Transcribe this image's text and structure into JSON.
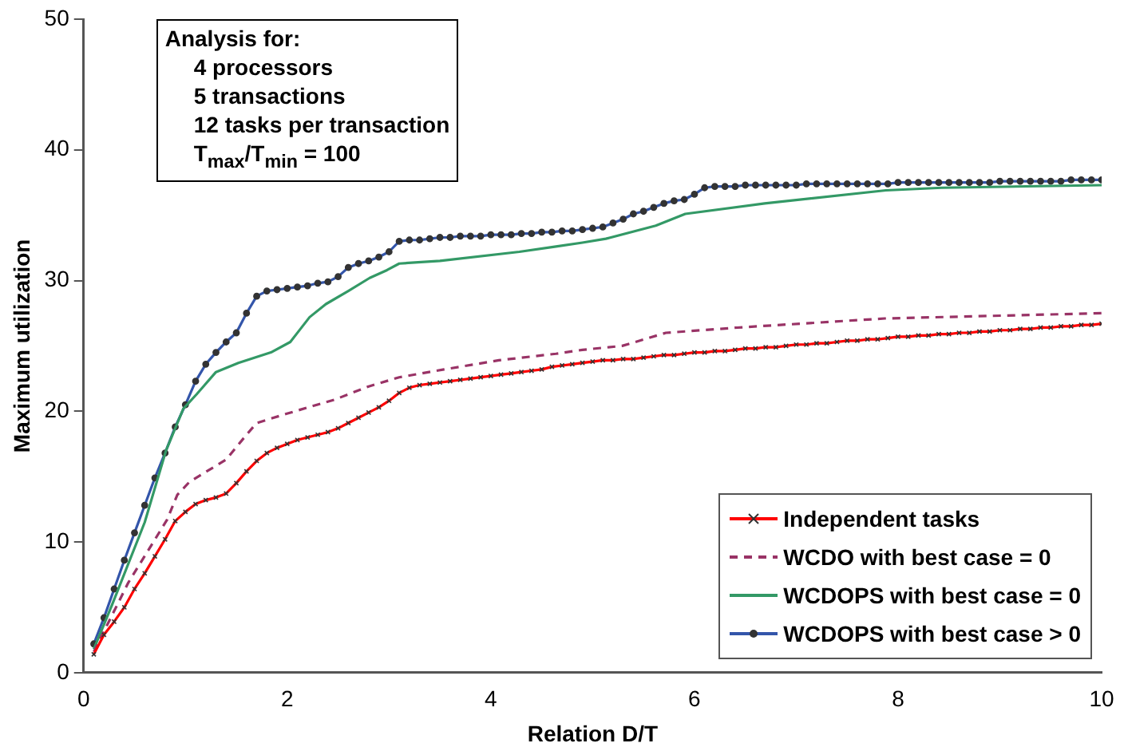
{
  "chart_data": {
    "type": "line",
    "xlabel": "Relation D/T",
    "ylabel": "Maximum utilization",
    "xlim": [
      0,
      10
    ],
    "xticks": [
      0,
      2,
      4,
      6,
      8,
      10
    ],
    "ylim": [
      0,
      50
    ],
    "yticks": [
      0,
      10,
      20,
      30,
      40,
      50
    ],
    "grid": false,
    "legend": "bottom right",
    "annotations": [
      "Analysis for:",
      "4 processors",
      "5 transactions",
      "12 tasks per transaction",
      "T$_{max}$/T$_{min}$ = 100"
    ],
    "series": [
      {
        "name": "Independent tasks",
        "color": "#ff0000",
        "marker": "cross",
        "line_style": "solid",
        "x": [
          0.1,
          0.2,
          0.3,
          0.4,
          0.5,
          0.6,
          0.7,
          0.8,
          0.9,
          1.0,
          1.1,
          1.2,
          1.3,
          1.4,
          1.5,
          1.6,
          1.7,
          1.8,
          1.9,
          2.0,
          2.1,
          2.2,
          2.3,
          2.4,
          2.5,
          2.6,
          2.7,
          2.8,
          2.9,
          3.0,
          3.1,
          3.2,
          3.3,
          3.4,
          3.5,
          3.6,
          3.7,
          3.8,
          3.9,
          4.0,
          4.1,
          4.2,
          4.3,
          4.4,
          4.5,
          4.6,
          4.7,
          4.8,
          4.9,
          5.0,
          5.1,
          5.2,
          5.3,
          5.4,
          5.5,
          5.6,
          5.7,
          5.8,
          5.9,
          6.0,
          6.1,
          6.2,
          6.3,
          6.4,
          6.5,
          6.6,
          6.7,
          6.8,
          6.9,
          7.0,
          7.1,
          7.2,
          7.3,
          7.4,
          7.5,
          7.6,
          7.7,
          7.8,
          7.9,
          8.0,
          8.1,
          8.2,
          8.3,
          8.4,
          8.5,
          8.6,
          8.7,
          8.8,
          8.9,
          9.0,
          9.1,
          9.2,
          9.3,
          9.4,
          9.5,
          9.6,
          9.7,
          9.8,
          9.9,
          10.0
        ],
        "values": [
          1.4,
          2.9,
          3.9,
          5.0,
          6.4,
          7.6,
          8.9,
          10.2,
          11.6,
          12.3,
          12.9,
          13.2,
          13.4,
          13.7,
          14.5,
          15.4,
          16.2,
          16.8,
          17.2,
          17.5,
          17.8,
          18.0,
          18.2,
          18.4,
          18.7,
          19.1,
          19.5,
          19.9,
          20.3,
          20.8,
          21.4,
          21.8,
          22.0,
          22.1,
          22.2,
          22.3,
          22.4,
          22.5,
          22.6,
          22.7,
          22.8,
          22.9,
          23.0,
          23.1,
          23.2,
          23.4,
          23.5,
          23.6,
          23.7,
          23.8,
          23.9,
          23.9,
          24.0,
          24.0,
          24.1,
          24.2,
          24.3,
          24.3,
          24.4,
          24.5,
          24.5,
          24.6,
          24.6,
          24.7,
          24.8,
          24.8,
          24.9,
          24.9,
          25.0,
          25.1,
          25.1,
          25.2,
          25.2,
          25.3,
          25.4,
          25.4,
          25.5,
          25.5,
          25.6,
          25.7,
          25.7,
          25.8,
          25.8,
          25.9,
          25.9,
          26.0,
          26.0,
          26.1,
          26.1,
          26.2,
          26.2,
          26.3,
          26.3,
          26.4,
          26.4,
          26.5,
          26.5,
          26.6,
          26.6,
          26.7
        ]
      },
      {
        "name": "WCDO with best case = 0",
        "color": "#993366",
        "marker": "none",
        "line_style": "dashed",
        "x": [
          0.1,
          0.44,
          0.82,
          0.92,
          1.04,
          1.4,
          1.6,
          1.7,
          1.99,
          2.47,
          2.8,
          3.1,
          3.54,
          4.08,
          4.64,
          4.9,
          5.29,
          5.72,
          6.42,
          7.87,
          10
        ],
        "values": [
          1.6,
          6.9,
          11.7,
          13.6,
          14.6,
          16.3,
          18.2,
          19.1,
          19.8,
          20.9,
          21.9,
          22.6,
          23.2,
          23.9,
          24.4,
          24.7,
          25.0,
          26.0,
          26.4,
          27.1,
          27.5
        ]
      },
      {
        "name": "WCDOPS with best case = 0",
        "color": "#339966",
        "marker": "none",
        "line_style": "solid",
        "x": [
          0.1,
          0.28,
          0.6,
          0.81,
          0.98,
          1.11,
          1.3,
          1.52,
          1.84,
          2.03,
          2.11,
          2.22,
          2.38,
          2.6,
          2.81,
          2.98,
          3.1,
          3.5,
          4.28,
          4.64,
          4.9,
          5.13,
          5.62,
          5.91,
          6.69,
          7.88,
          8.43,
          10
        ],
        "values": [
          1.8,
          5.2,
          11.5,
          17.0,
          20.2,
          21.3,
          23.0,
          23.7,
          24.5,
          25.3,
          26.1,
          27.2,
          28.2,
          29.2,
          30.2,
          30.8,
          31.3,
          31.5,
          32.2,
          32.6,
          32.9,
          33.2,
          34.2,
          35.1,
          35.9,
          36.9,
          37.1,
          37.3
        ]
      },
      {
        "name": "WCDOPS with best case > 0",
        "color": "#3355aa",
        "marker": "circle",
        "line_style": "solid",
        "x": [
          0.1,
          0.2,
          0.3,
          0.4,
          0.5,
          0.6,
          0.7,
          0.8,
          0.9,
          1.0,
          1.1,
          1.2,
          1.3,
          1.4,
          1.5,
          1.6,
          1.7,
          1.8,
          1.9,
          2.0,
          2.1,
          2.2,
          2.3,
          2.4,
          2.5,
          2.6,
          2.7,
          2.8,
          2.9,
          3.0,
          3.1,
          3.2,
          3.3,
          3.4,
          3.5,
          3.6,
          3.7,
          3.8,
          3.9,
          4.0,
          4.1,
          4.2,
          4.3,
          4.4,
          4.5,
          4.6,
          4.7,
          4.8,
          4.9,
          5.0,
          5.1,
          5.2,
          5.3,
          5.4,
          5.5,
          5.6,
          5.7,
          5.8,
          5.9,
          6.0,
          6.1,
          6.2,
          6.3,
          6.4,
          6.5,
          6.6,
          6.7,
          6.8,
          6.9,
          7.0,
          7.1,
          7.2,
          7.3,
          7.4,
          7.5,
          7.6,
          7.7,
          7.8,
          7.9,
          8.0,
          8.1,
          8.2,
          8.3,
          8.4,
          8.5,
          8.6,
          8.7,
          8.8,
          8.9,
          9.0,
          9.1,
          9.2,
          9.3,
          9.4,
          9.5,
          9.6,
          9.7,
          9.8,
          9.9,
          10.0
        ],
        "values": [
          2.2,
          4.2,
          6.4,
          8.6,
          10.7,
          12.8,
          14.9,
          16.8,
          18.8,
          20.5,
          22.3,
          23.6,
          24.5,
          25.3,
          26.0,
          27.5,
          28.8,
          29.2,
          29.3,
          29.4,
          29.5,
          29.6,
          29.8,
          29.9,
          30.3,
          31.0,
          31.3,
          31.5,
          31.8,
          32.2,
          33.0,
          33.1,
          33.1,
          33.2,
          33.3,
          33.3,
          33.4,
          33.4,
          33.4,
          33.5,
          33.5,
          33.5,
          33.6,
          33.6,
          33.7,
          33.7,
          33.8,
          33.8,
          33.9,
          34.0,
          34.1,
          34.4,
          34.7,
          35.1,
          35.3,
          35.6,
          35.9,
          36.1,
          36.2,
          36.6,
          37.1,
          37.2,
          37.2,
          37.2,
          37.3,
          37.3,
          37.3,
          37.3,
          37.3,
          37.3,
          37.4,
          37.4,
          37.4,
          37.4,
          37.4,
          37.4,
          37.4,
          37.4,
          37.4,
          37.5,
          37.5,
          37.5,
          37.5,
          37.5,
          37.5,
          37.5,
          37.5,
          37.5,
          37.5,
          37.6,
          37.6,
          37.6,
          37.6,
          37.6,
          37.6,
          37.6,
          37.7,
          37.7,
          37.7,
          37.7
        ]
      }
    ]
  }
}
